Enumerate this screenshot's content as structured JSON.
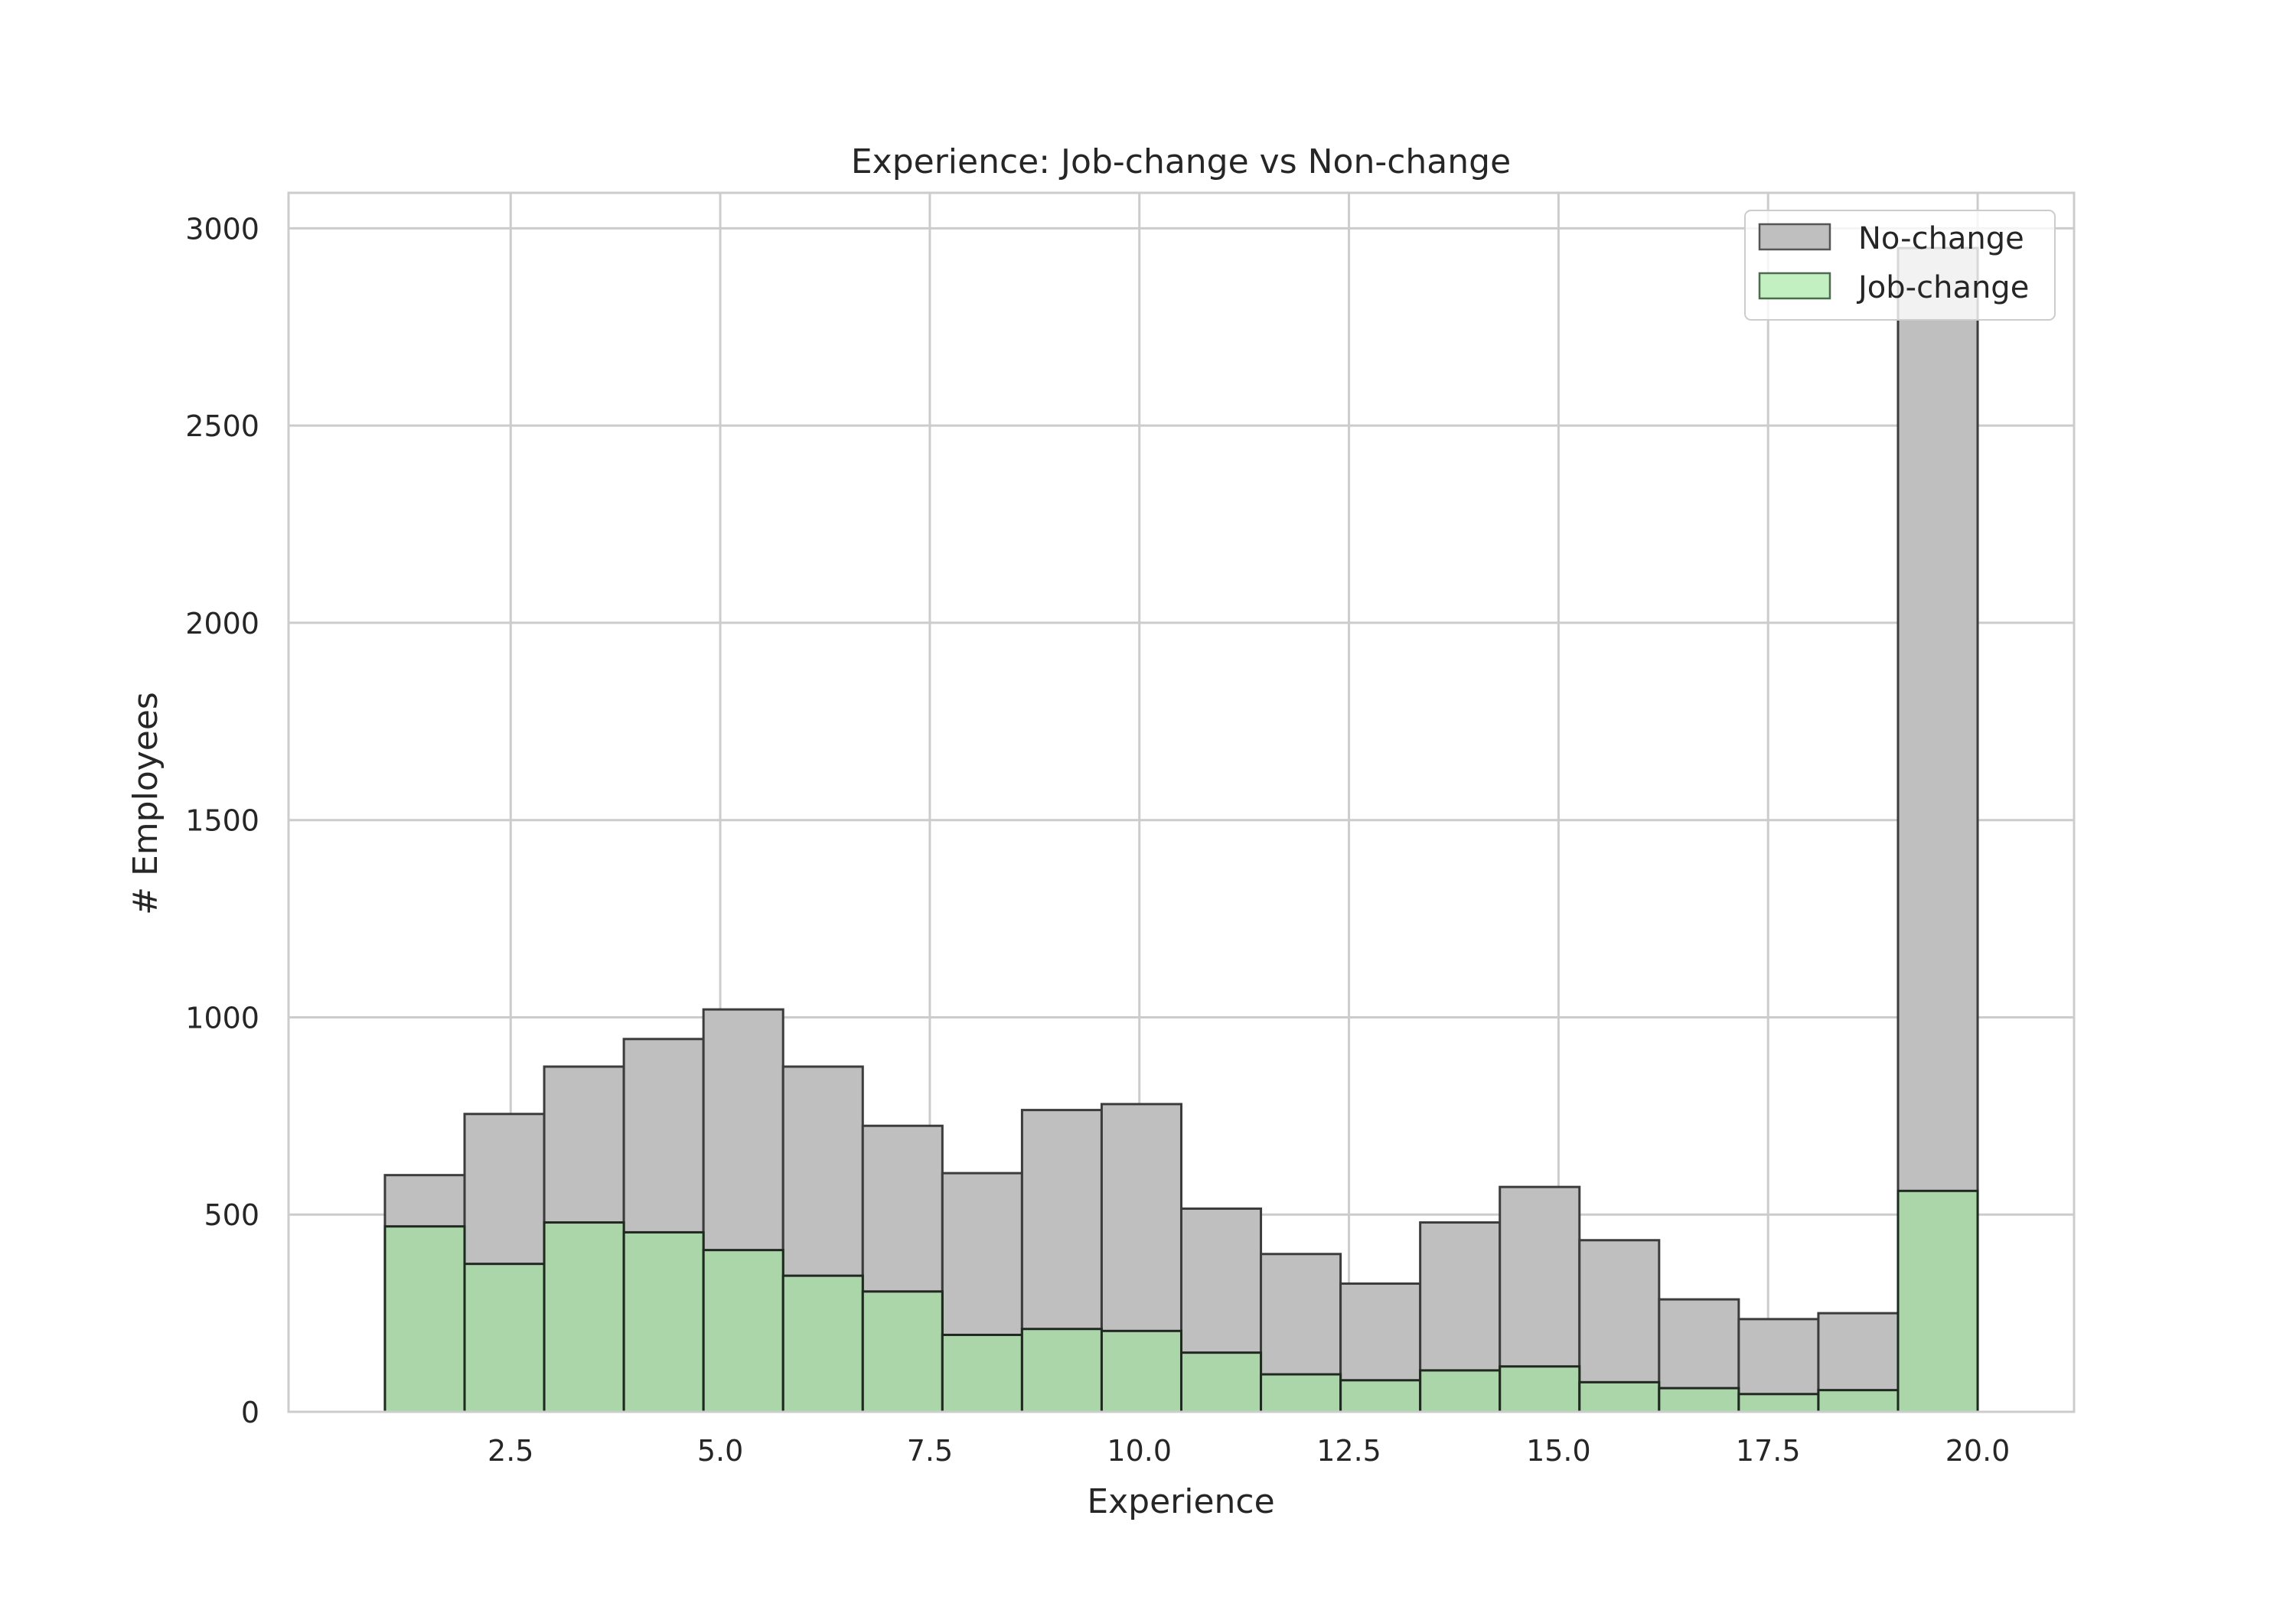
{
  "chart_data": {
    "type": "bar",
    "subtype": "histogram-overlay",
    "title": "Experience: Job-change vs Non-change",
    "xlabel": "Experience",
    "ylabel": "# Employees",
    "xlim": [
      -0.15,
      21.15
    ],
    "ylim": [
      0,
      3090
    ],
    "xticks": [
      2.5,
      5.0,
      7.5,
      10.0,
      12.5,
      15.0,
      17.5,
      20.0
    ],
    "xtick_labels": [
      "2.5",
      "5.0",
      "7.5",
      "10.0",
      "12.5",
      "15.0",
      "17.5",
      "20.0"
    ],
    "yticks": [
      0,
      500,
      1000,
      1500,
      2000,
      2500,
      3000
    ],
    "ytick_labels": [
      "0",
      "500",
      "1000",
      "1500",
      "2000",
      "2500",
      "3000"
    ],
    "grid": true,
    "legend_position": "top-right",
    "bin_edges": [
      1.0,
      1.95,
      2.9,
      3.85,
      4.8,
      5.75,
      6.7,
      7.65,
      8.6,
      9.55,
      10.5,
      11.45,
      12.4,
      13.35,
      14.3,
      15.25,
      16.2,
      17.15,
      18.1,
      19.05,
      20.0
    ],
    "series": [
      {
        "name": "No-change",
        "color": "#bfbfbf",
        "edge_color": "#3c3c3c",
        "values": [
          600,
          755,
          875,
          945,
          1020,
          875,
          725,
          605,
          765,
          780,
          515,
          400,
          325,
          480,
          570,
          435,
          285,
          235,
          250,
          2950
        ]
      },
      {
        "name": "Job-change",
        "color": "#a6d9a4",
        "edge_color": "#1e2a1e",
        "values": [
          470,
          375,
          480,
          455,
          410,
          345,
          305,
          195,
          210,
          205,
          150,
          95,
          80,
          105,
          115,
          75,
          60,
          45,
          55,
          560
        ]
      }
    ]
  }
}
